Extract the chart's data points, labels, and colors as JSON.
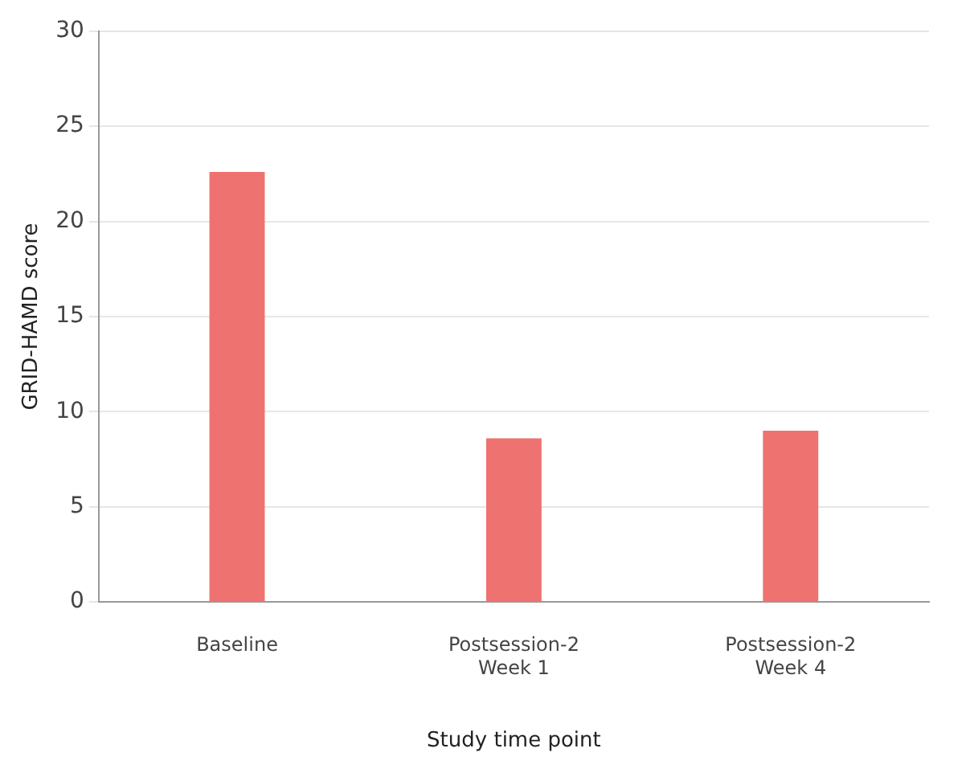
{
  "chart_data": {
    "type": "bar",
    "xlabel": "Study time point",
    "ylabel": "GRID-HAMD score",
    "categories": [
      "Baseline",
      "Postsession-2 Week 1",
      "Postsession-2 Week 4"
    ],
    "values": [
      22.6,
      8.6,
      9.0
    ],
    "color": "#ee726f",
    "ylim": [
      0,
      30
    ],
    "yticks": [
      0,
      5,
      10,
      15,
      20,
      25,
      30
    ],
    "grid": "y",
    "legend": false
  }
}
